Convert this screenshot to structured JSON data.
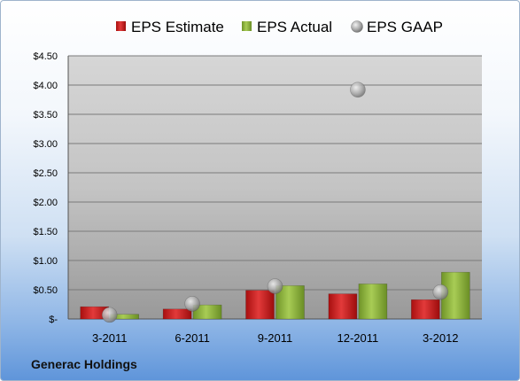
{
  "chart_data": {
    "type": "bar",
    "title": "",
    "footer": "Generac Holdings",
    "categories": [
      "3-2011",
      "6-2011",
      "9-2011",
      "12-2011",
      "3-2012"
    ],
    "series": [
      {
        "name": "EPS Estimate",
        "kind": "bar",
        "color": "#d01c1c",
        "values": [
          0.21,
          0.17,
          0.49,
          0.43,
          0.33
        ]
      },
      {
        "name": "EPS Actual",
        "kind": "bar",
        "color": "#8db33a",
        "values": [
          0.08,
          0.24,
          0.57,
          0.6,
          0.8
        ]
      },
      {
        "name": "EPS GAAP",
        "kind": "marker",
        "color": "#9a9a9a",
        "values": [
          0.07,
          0.26,
          0.56,
          3.92,
          0.46
        ]
      }
    ],
    "ylim": [
      0,
      4.5
    ],
    "yticks": [
      "$-",
      "$0.50",
      "$1.00",
      "$1.50",
      "$2.00",
      "$2.50",
      "$3.00",
      "$3.50",
      "$4.00",
      "$4.50"
    ],
    "grid": true,
    "legend": "top"
  }
}
